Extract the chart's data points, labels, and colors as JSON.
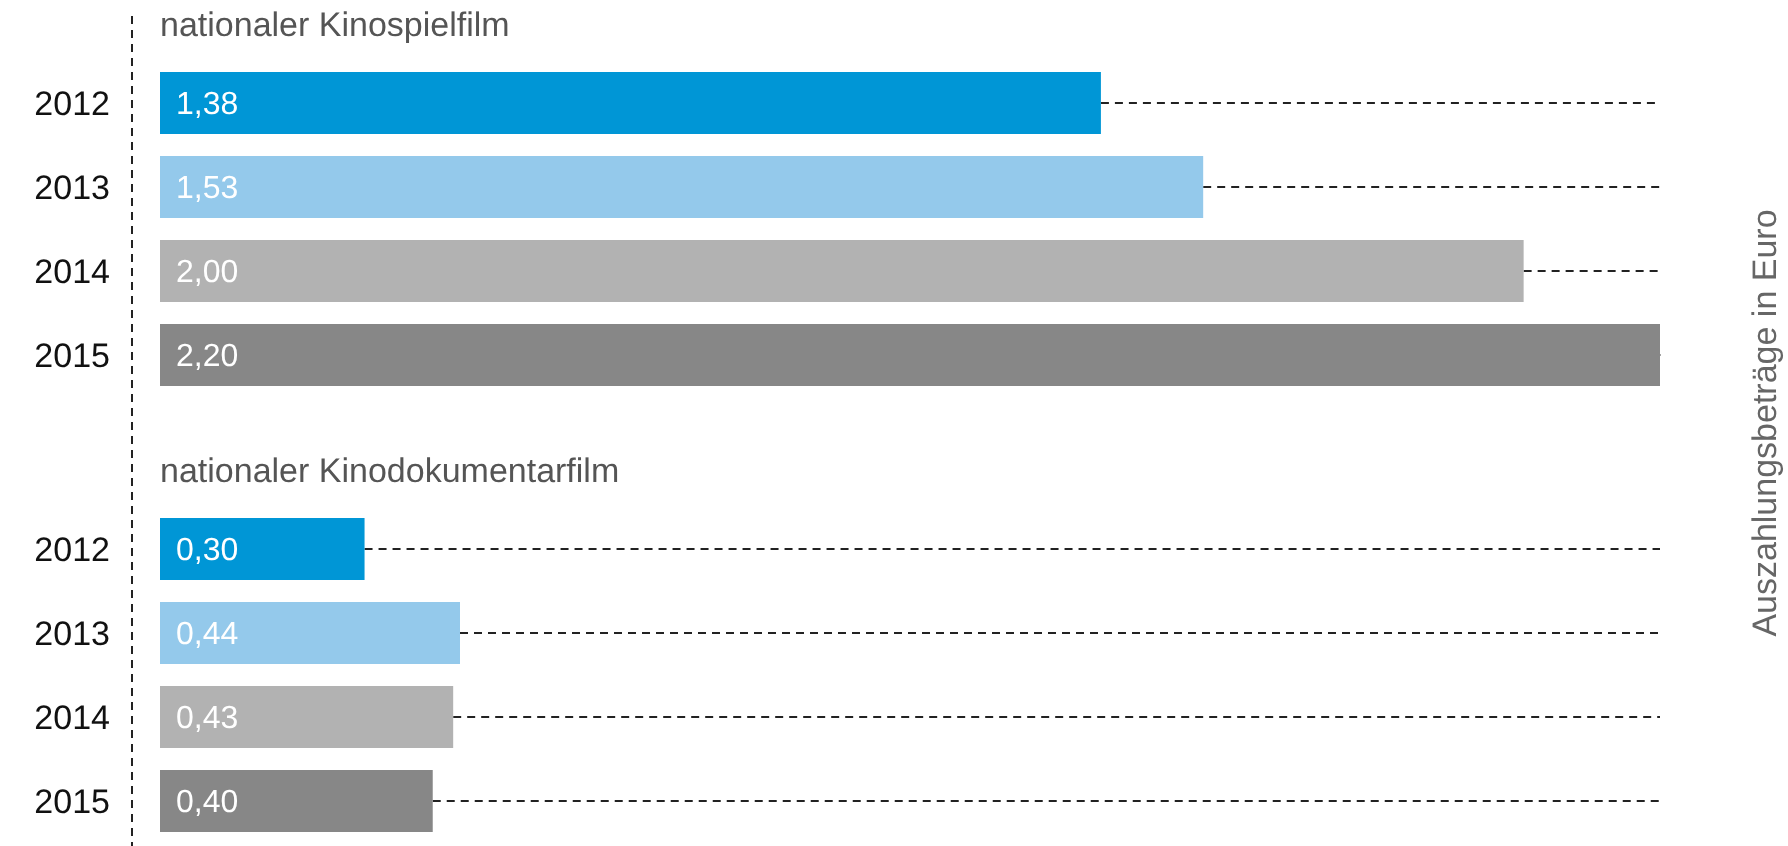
{
  "chart_data": [
    {
      "type": "bar",
      "orientation": "horizontal",
      "title": "nationaler Kinospielfilm",
      "ylabel": "Auszahlungsbeträge in Euro",
      "categories": [
        "2012",
        "2013",
        "2014",
        "2015"
      ],
      "values": [
        1.38,
        1.53,
        2.0,
        2.2
      ],
      "value_labels": [
        "1,38",
        "1,53",
        "2,00",
        "2,20"
      ],
      "colors": [
        "#0096d6",
        "#94c9eb",
        "#b2b2b2",
        "#878787"
      ]
    },
    {
      "type": "bar",
      "orientation": "horizontal",
      "title": "nationaler Kinodokumentarfilm",
      "categories": [
        "2012",
        "2013",
        "2014",
        "2015"
      ],
      "values": [
        0.3,
        0.44,
        0.43,
        0.4
      ],
      "value_labels": [
        "0,30",
        "0,44",
        "0,43",
        "0,40"
      ],
      "colors": [
        "#0096d6",
        "#94c9eb",
        "#b2b2b2",
        "#878787"
      ]
    }
  ]
}
